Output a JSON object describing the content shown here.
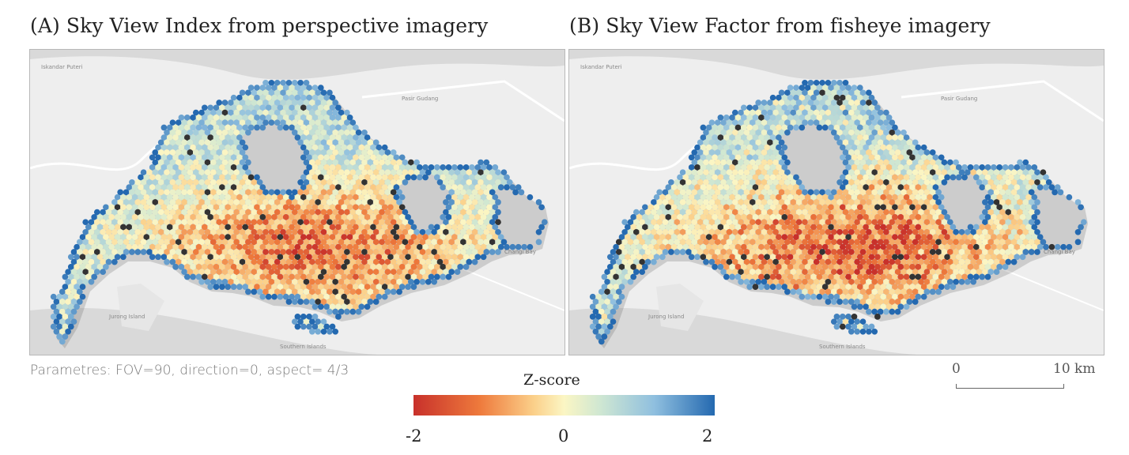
{
  "panels": [
    {
      "title": "(A) Sky View Index from perspective imagery",
      "variant": "index"
    },
    {
      "title": "(B) Sky View Factor from fisheye imagery",
      "variant": "factor"
    }
  ],
  "parameters_text": "Parametres: FOV=90, direction=0, aspect= 4/3",
  "legend": {
    "title": "Z-score",
    "min_label": "-2",
    "mid_label": "0",
    "max_label": "2",
    "colors": [
      "#c8312b",
      "#ee7a3c",
      "#fbd08a",
      "#fbf6c4",
      "#cfe7d2",
      "#8fbfdf",
      "#2469b0"
    ]
  },
  "scale_bar": {
    "start_label": "0",
    "end_label": "10 km"
  },
  "colors": {
    "basemap": "#eeeeee",
    "water": "#d9d9d9",
    "land": "#e6e6e6",
    "road": "#ffffff",
    "no_data": "#333333"
  }
}
